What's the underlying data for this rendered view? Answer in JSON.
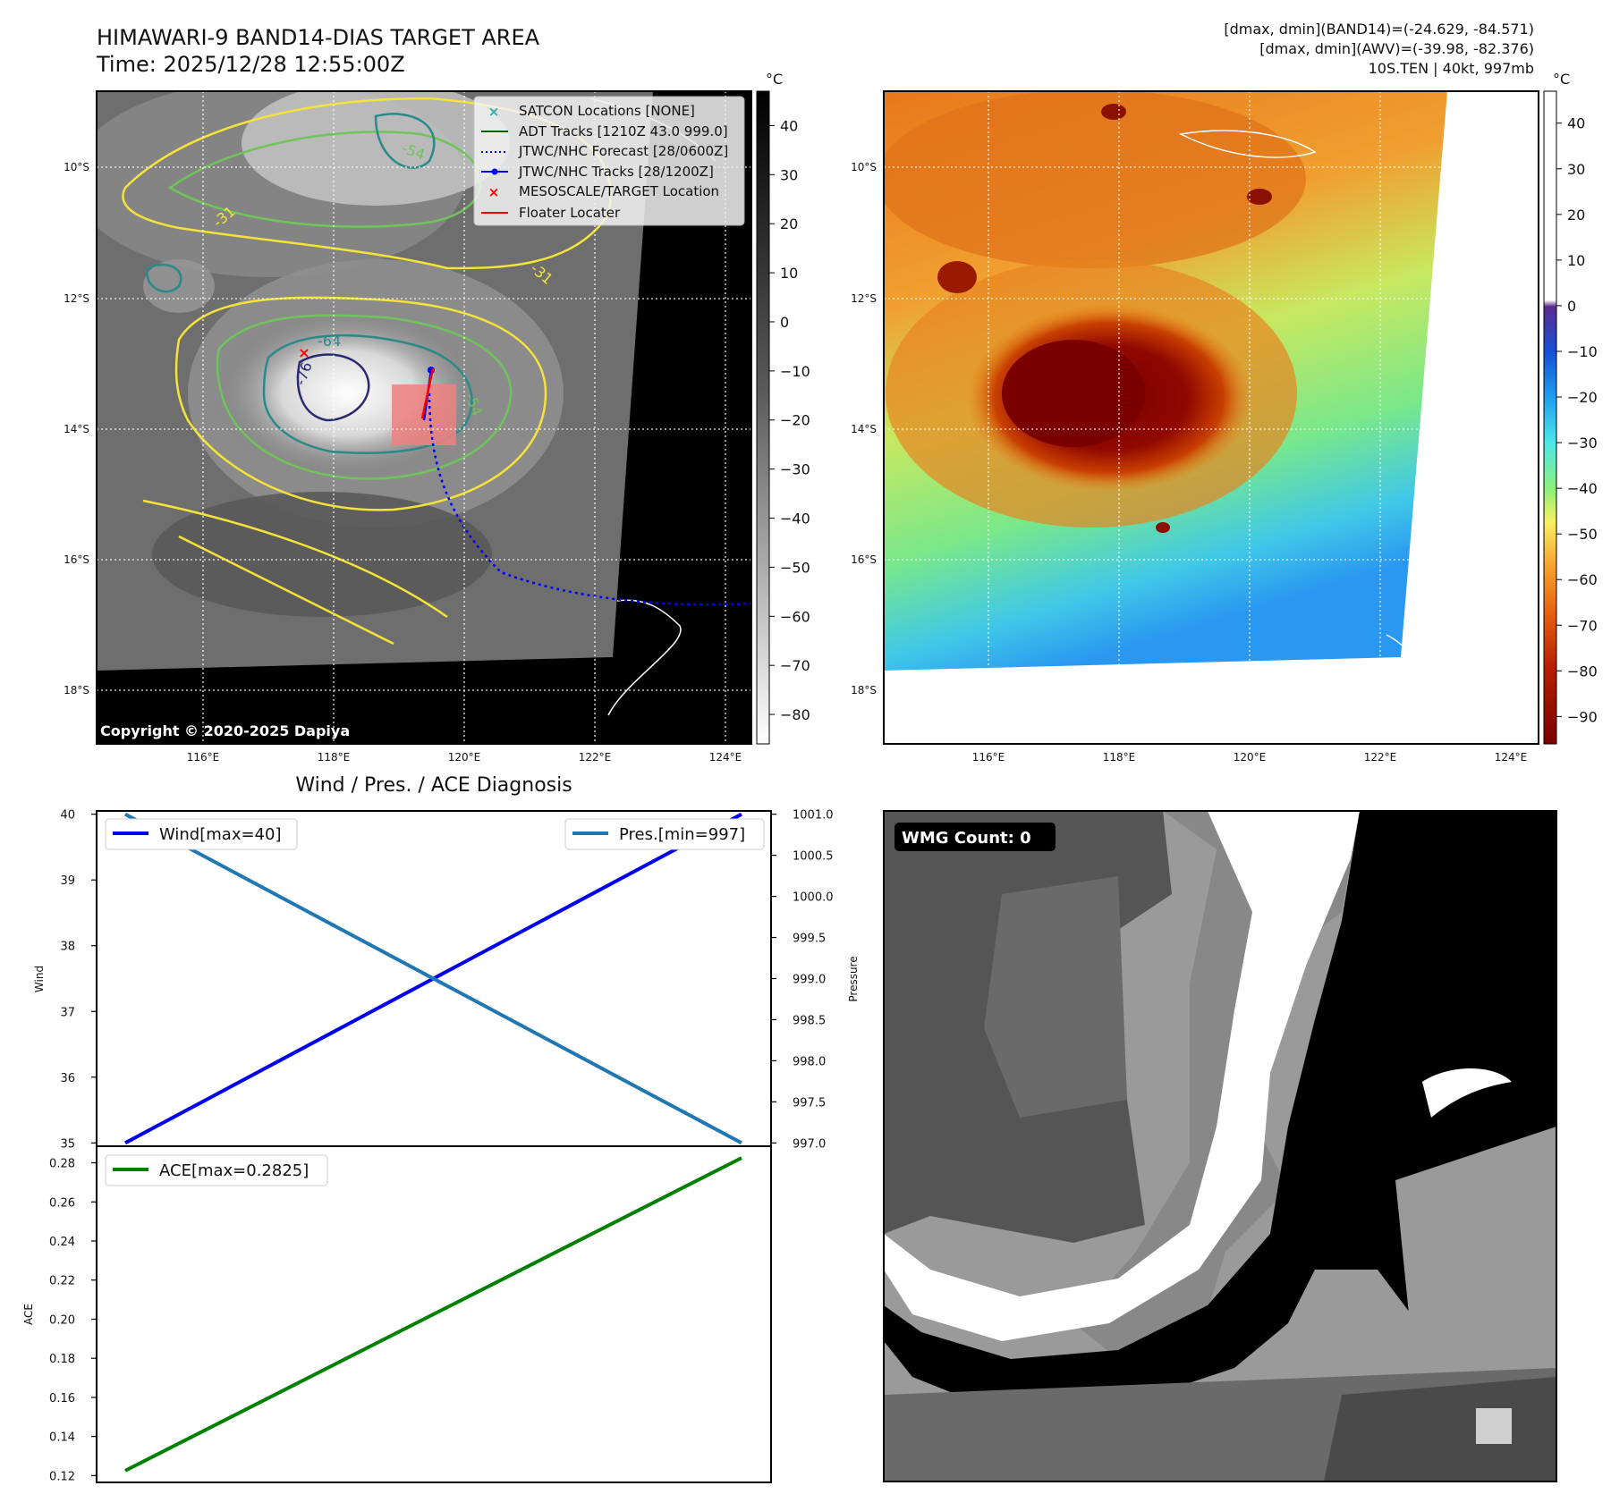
{
  "header": {
    "title_line1": "HIMAWARI-9 BAND14-DIAS TARGET AREA",
    "title_line2": "Time: 2025/12/28 12:55:00Z",
    "right_line1": "[dmax, dmin](BAND14)=(-24.629, -84.571)",
    "right_line2": "[dmax, dmin](AWV)=(-39.98, -82.376)",
    "right_line3": "10S.TEN | 40kt, 997mb"
  },
  "colors": {
    "wind": "#0000ee",
    "pres": "#1f77b4",
    "ace": "#008000",
    "jtwc_forecast": "#0000ff",
    "adt": "#006400",
    "satcon": "#20b2aa",
    "target": "#ff0000",
    "contour_yellow": "#f5e33a",
    "contour_green": "#6fc45a",
    "contour_teal": "#2a8a8a",
    "contour_navy": "#2a2a70"
  },
  "map_axes": {
    "lat_labels": [
      "10°S",
      "12°S",
      "14°S",
      "16°S",
      "18°S"
    ],
    "lon_labels": [
      "116°E",
      "118°E",
      "120°E",
      "122°E",
      "124°E"
    ]
  },
  "panel1": {
    "legend": [
      {
        "label": "SATCON Locations [NONE]",
        "icon": "teal-x-marker"
      },
      {
        "label": "ADT Tracks [1210Z 43.0 999.0]",
        "icon": "green-line"
      },
      {
        "label": "JTWC/NHC Forecast [28/0600Z]",
        "icon": "blue-dotted-line"
      },
      {
        "label": "JTWC/NHC Tracks [28/1200Z]",
        "icon": "blue-line-dot"
      },
      {
        "label": "MESOSCALE/TARGET Location",
        "icon": "red-x-marker"
      },
      {
        "label": "Floater Locater",
        "icon": "red-line"
      }
    ],
    "copyright": "Copyright © 2020-2025 Dapiya",
    "contour_labels": [
      "-64",
      "-54",
      "-54",
      "-31",
      "-31",
      "-76"
    ],
    "colorbar": {
      "unit": "°C",
      "ticks": [
        "40",
        "30",
        "20",
        "10",
        "0",
        "−10",
        "−20",
        "−30",
        "−40",
        "−50",
        "−60",
        "−70",
        "−80"
      ]
    }
  },
  "panel2": {
    "colorbar": {
      "unit": "°C",
      "ticks": [
        "40",
        "30",
        "20",
        "10",
        "0",
        "−10",
        "−20",
        "−30",
        "−40",
        "−50",
        "−60",
        "−70",
        "−80",
        "−90"
      ]
    }
  },
  "panel3": {
    "title": "Wind / Pres. / ACE Diagnosis",
    "wind_ylabel": "Wind",
    "pres_ylabel": "Pressure",
    "ace_ylabel": "ACE",
    "wind_legend": "Wind[max=40]",
    "pres_legend": "Pres.[min=997]",
    "ace_legend": "ACE[max=0.2825]"
  },
  "panel4": {
    "badge": "WMG Count: 0"
  },
  "chart_data": [
    {
      "type": "line",
      "title": "Wind / Pres. / ACE Diagnosis",
      "x": [
        0,
        1
      ],
      "series": [
        {
          "name": "Wind[max=40]",
          "axis": "left",
          "values": [
            35,
            40
          ]
        },
        {
          "name": "Pres.[min=997]",
          "axis": "right",
          "values": [
            1001.0,
            997.0
          ]
        }
      ],
      "ylabel": "Wind",
      "ylabel_right": "Pressure",
      "ylim": [
        34.95,
        40.05
      ],
      "ylim_right": [
        996.96,
        1001.04
      ],
      "yticks": [
        "35",
        "36",
        "37",
        "38",
        "39",
        "40"
      ],
      "yticks_right": [
        "997.0",
        "997.5",
        "998.0",
        "998.5",
        "999.0",
        "999.5",
        "1000.0",
        "1000.5",
        "1001.0"
      ]
    },
    {
      "type": "line",
      "x": [
        0,
        1
      ],
      "series": [
        {
          "name": "ACE[max=0.2825]",
          "values": [
            0.1225,
            0.2825
          ]
        }
      ],
      "ylabel": "ACE",
      "ylim": [
        0.1165,
        0.2885
      ],
      "yticks": [
        "0.12",
        "0.14",
        "0.16",
        "0.18",
        "0.20",
        "0.22",
        "0.24",
        "0.26",
        "0.28"
      ]
    }
  ]
}
